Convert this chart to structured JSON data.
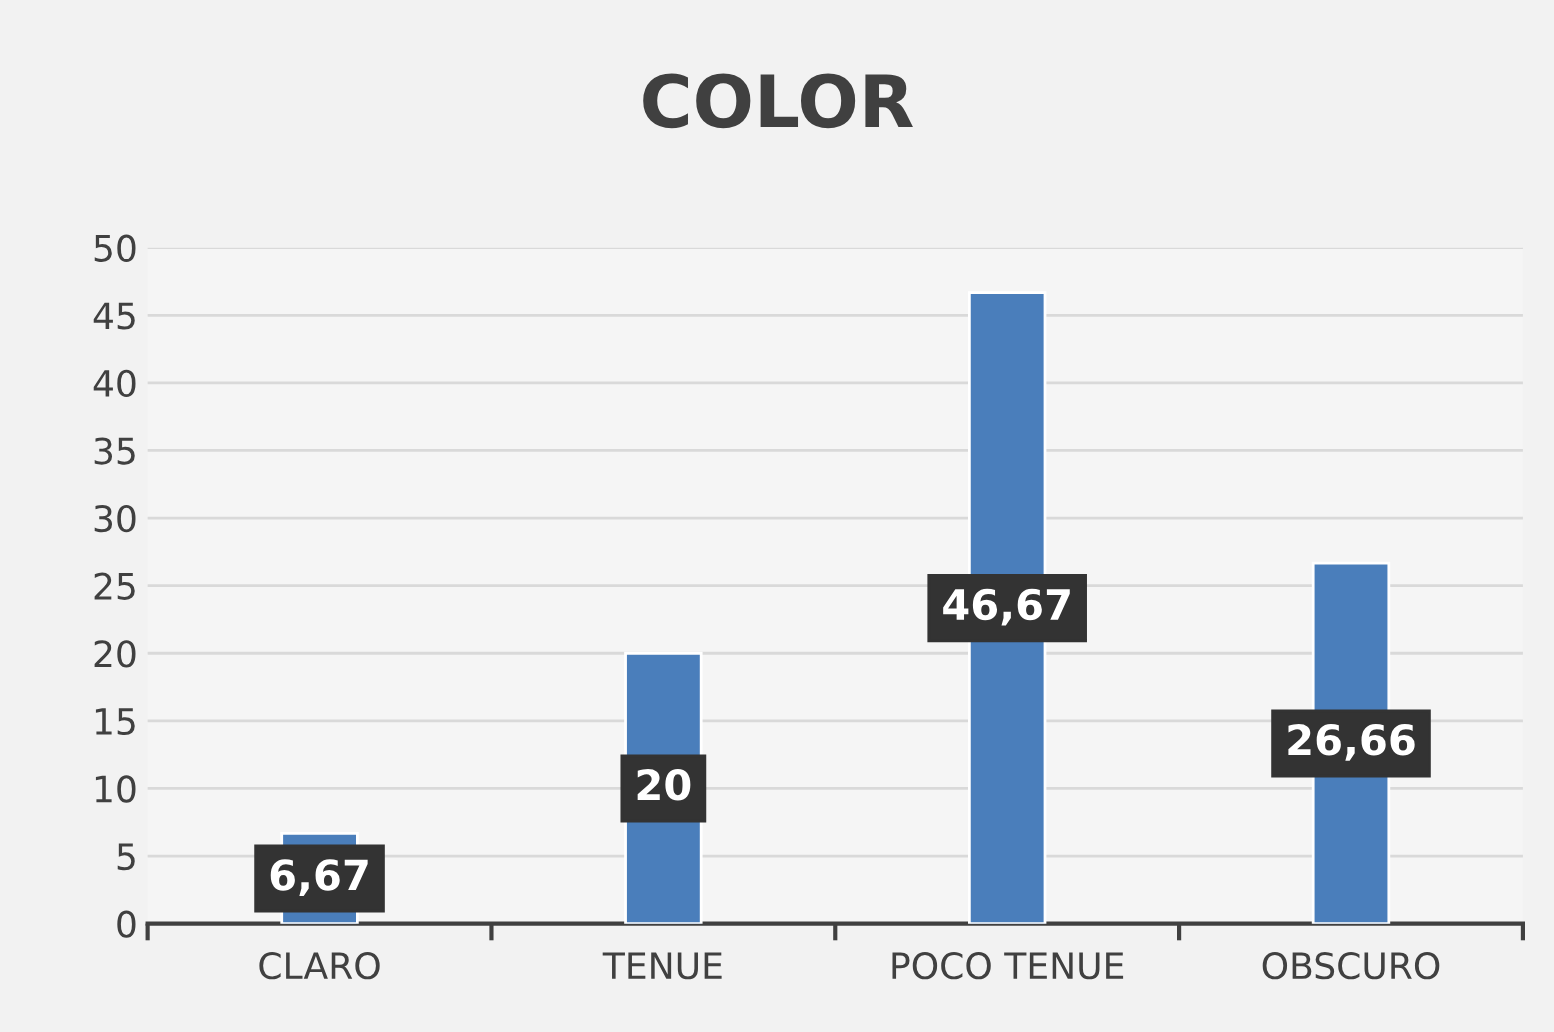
{
  "chart_data": {
    "type": "bar",
    "title": "COLOR",
    "categories": [
      "CLARO",
      "TENUE",
      "POCO TENUE",
      "OBSCURO"
    ],
    "values": [
      6.67,
      20,
      46.67,
      26.66
    ],
    "value_labels": [
      "6,67",
      "20",
      "46,67",
      "26,66"
    ],
    "color": "#4a7ebb",
    "ylim": [
      0,
      50
    ],
    "yticks": [
      0,
      5,
      10,
      15,
      20,
      25,
      30,
      35,
      40,
      45,
      50
    ],
    "grid": "y",
    "legend": false
  }
}
